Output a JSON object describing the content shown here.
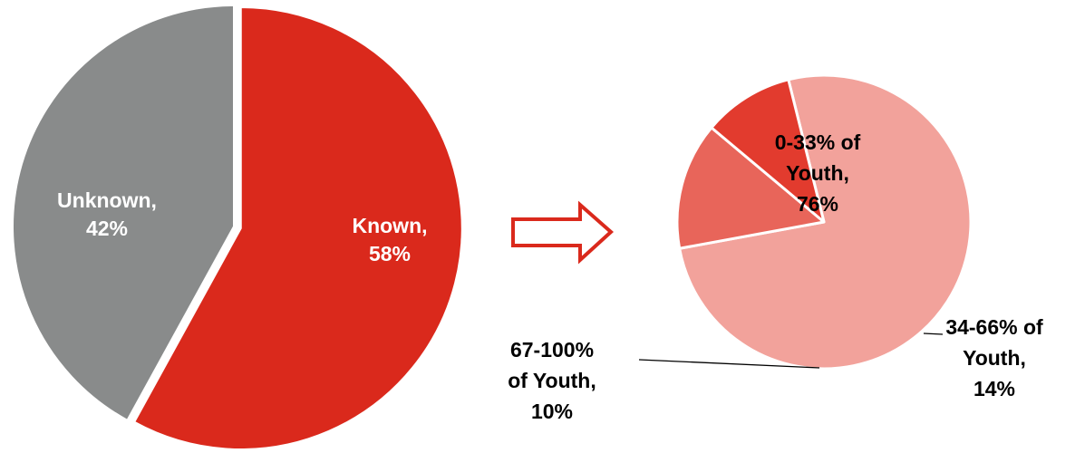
{
  "colors": {
    "background": "#ffffff",
    "known": "#da291c",
    "unknown": "#898b8b",
    "band_0_33": "#f2a29b",
    "band_34_66": "#e8655a",
    "band_67_100": "#e23b2e",
    "arrow_outline": "#da291c",
    "label_light": "#ffffff",
    "label_dark": "#000000",
    "leader_line": "#000000"
  },
  "chart_data": [
    {
      "type": "pie",
      "slices": [
        {
          "label": "Known",
          "value": 58,
          "label_lines": [
            "Known,",
            "58%"
          ],
          "color_key": "known",
          "exploded": true,
          "label_color_key": "label_light"
        },
        {
          "label": "Unknown",
          "value": 42,
          "label_lines": [
            "Unknown,",
            "42%"
          ],
          "color_key": "unknown",
          "exploded": false,
          "label_color_key": "label_light"
        }
      ]
    },
    {
      "type": "pie",
      "slices": [
        {
          "label": "0-33% of Youth",
          "value": 76,
          "label_lines": [
            "0-33% of",
            "Youth,",
            "76%"
          ],
          "color_key": "band_0_33",
          "label_color_key": "label_dark",
          "leader": false
        },
        {
          "label": "34-66% of Youth",
          "value": 14,
          "label_lines": [
            "34-66% of",
            "Youth,",
            "14%"
          ],
          "color_key": "band_34_66",
          "label_color_key": "label_dark",
          "leader": true
        },
        {
          "label": "67-100% of Youth",
          "value": 10,
          "label_lines": [
            "67-100%",
            "of Youth,",
            "10%"
          ],
          "color_key": "band_67_100",
          "label_color_key": "label_dark",
          "leader": true
        }
      ]
    }
  ],
  "arrow": {
    "icon": "right-arrow-outline-icon",
    "direction": "right"
  }
}
